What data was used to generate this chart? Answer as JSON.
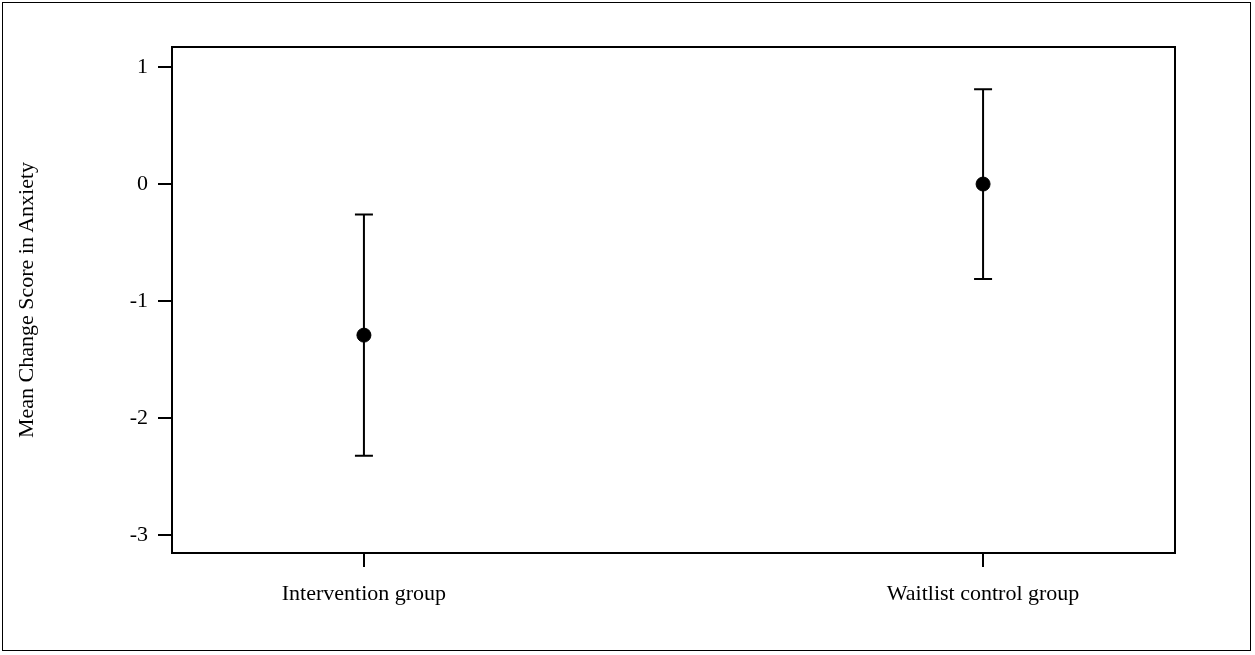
{
  "chart_data": {
    "type": "scatter",
    "ylabel": "Mean Change Score in Anxiety",
    "categories": [
      "Intervention group",
      "Waitlist control group"
    ],
    "values": [
      -1.29,
      0
    ],
    "errors": [
      1.03,
      0.81
    ],
    "color": "#000000",
    "marker": "circle",
    "ylim": [
      -3.15,
      1.17
    ],
    "yticks": [
      -3,
      -2,
      -1,
      0,
      1
    ]
  }
}
